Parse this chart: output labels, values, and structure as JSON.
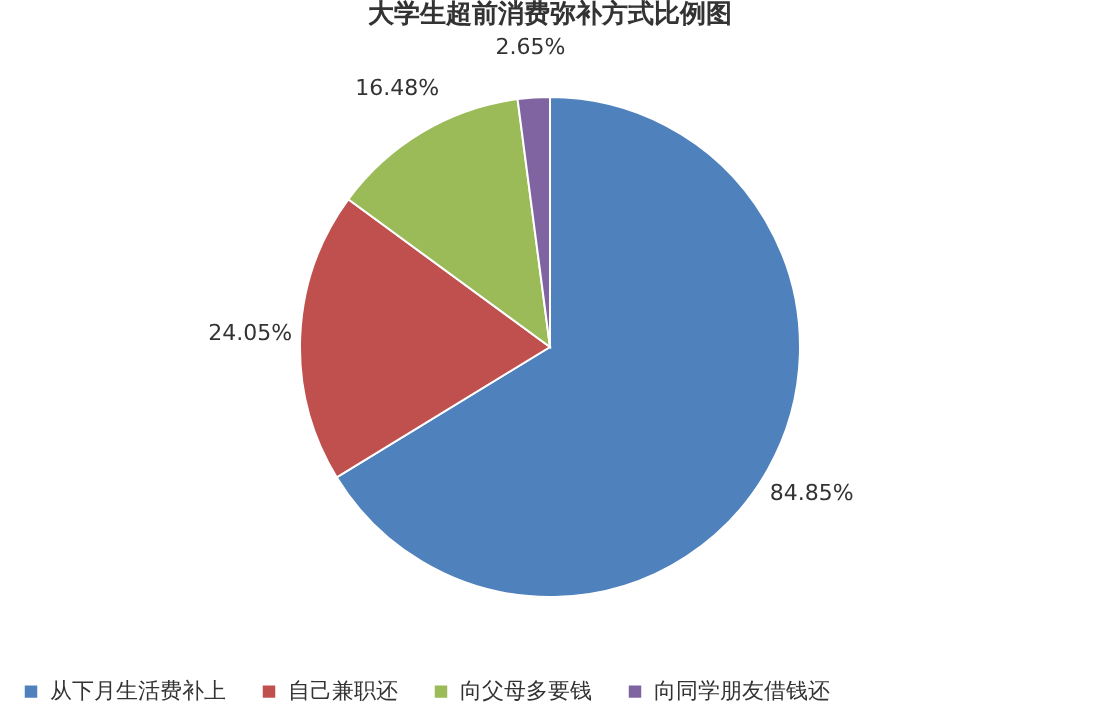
{
  "chart_data": {
    "type": "pie",
    "title": "大学生超前消费弥补方式比例图",
    "categories": [
      "从下月生活费补上",
      "自己兼职还",
      "向父母多要钱",
      "向同学朋友借钱还"
    ],
    "values": [
      84.85,
      24.05,
      16.48,
      2.65
    ],
    "value_labels": [
      "84.85%",
      "24.05%",
      "16.48%",
      "2.65%"
    ],
    "colors": [
      "#4f81bd",
      "#c0504d",
      "#9bbb59",
      "#8064a2"
    ],
    "legend": "bottom"
  }
}
